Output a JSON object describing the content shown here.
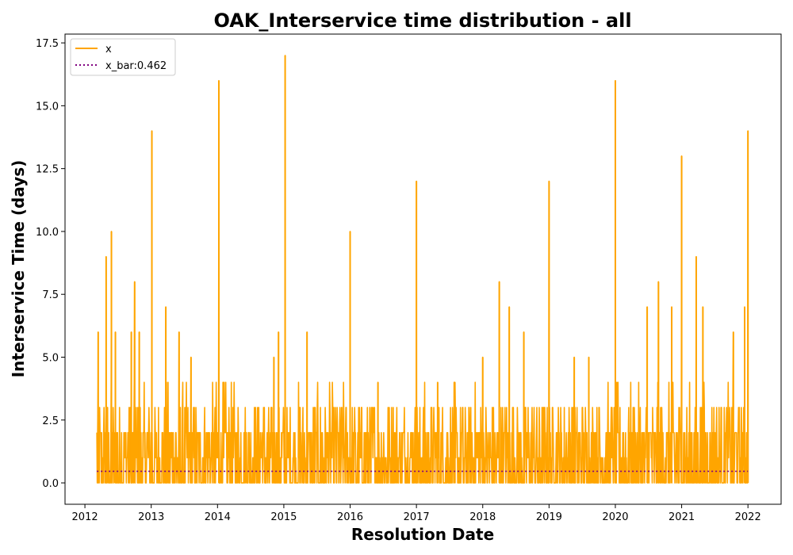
{
  "chart_data": {
    "type": "line",
    "title": "OAK_Interservice time distribution - all",
    "xlabel": "Resolution Date",
    "ylabel": "Interservice Time (days)",
    "x_axis": "year",
    "xlim": [
      2011.7,
      2022.5
    ],
    "ylim": [
      -0.85,
      17.85
    ],
    "xticks": [
      2012,
      2013,
      2014,
      2015,
      2016,
      2017,
      2018,
      2019,
      2020,
      2021,
      2022
    ],
    "xtick_labels": [
      "2012",
      "2013",
      "2014",
      "2015",
      "2016",
      "2017",
      "2018",
      "2019",
      "2020",
      "2021",
      "2022"
    ],
    "yticks": [
      0,
      2.5,
      5,
      7.5,
      10,
      12.5,
      15,
      17.5
    ],
    "ytick_labels": [
      "0.0",
      "2.5",
      "5.0",
      "7.5",
      "10.0",
      "12.5",
      "15.0",
      "17.5"
    ],
    "legend": {
      "position": "top-left",
      "entries": [
        "x",
        "x_bar:0.462"
      ]
    },
    "series": [
      {
        "name": "x",
        "style": "solid",
        "color": "#ffa500",
        "peaks": [
          {
            "x": 2012.2,
            "y": 6
          },
          {
            "x": 2012.32,
            "y": 9
          },
          {
            "x": 2012.4,
            "y": 10
          },
          {
            "x": 2012.46,
            "y": 6
          },
          {
            "x": 2012.7,
            "y": 6
          },
          {
            "x": 2012.75,
            "y": 8
          },
          {
            "x": 2012.82,
            "y": 6
          },
          {
            "x": 2013.01,
            "y": 14
          },
          {
            "x": 2013.22,
            "y": 7
          },
          {
            "x": 2013.42,
            "y": 6
          },
          {
            "x": 2013.6,
            "y": 5
          },
          {
            "x": 2014.02,
            "y": 16
          },
          {
            "x": 2014.85,
            "y": 5
          },
          {
            "x": 2014.92,
            "y": 6
          },
          {
            "x": 2015.02,
            "y": 17
          },
          {
            "x": 2015.35,
            "y": 6
          },
          {
            "x": 2016.0,
            "y": 10
          },
          {
            "x": 2016.42,
            "y": 4
          },
          {
            "x": 2017.0,
            "y": 12
          },
          {
            "x": 2017.32,
            "y": 4
          },
          {
            "x": 2017.58,
            "y": 4
          },
          {
            "x": 2018.0,
            "y": 5
          },
          {
            "x": 2018.25,
            "y": 8
          },
          {
            "x": 2018.4,
            "y": 7
          },
          {
            "x": 2018.62,
            "y": 6
          },
          {
            "x": 2019.0,
            "y": 12
          },
          {
            "x": 2019.38,
            "y": 5
          },
          {
            "x": 2019.6,
            "y": 5
          },
          {
            "x": 2020.0,
            "y": 16
          },
          {
            "x": 2020.48,
            "y": 7
          },
          {
            "x": 2020.65,
            "y": 8
          },
          {
            "x": 2020.85,
            "y": 7
          },
          {
            "x": 2021.0,
            "y": 13
          },
          {
            "x": 2021.22,
            "y": 9
          },
          {
            "x": 2021.32,
            "y": 7
          },
          {
            "x": 2021.78,
            "y": 6
          },
          {
            "x": 2021.95,
            "y": 7
          },
          {
            "x": 2022.0,
            "y": 14
          }
        ],
        "baseline_range": [
          0,
          3
        ],
        "x_start": 2012.18,
        "x_end": 2022.0
      },
      {
        "name": "x_bar:0.462",
        "style": "dotted",
        "color": "#800080",
        "values": [
          {
            "x": 2012.18,
            "y": 0.462
          },
          {
            "x": 2022.0,
            "y": 0.462
          }
        ]
      }
    ]
  }
}
